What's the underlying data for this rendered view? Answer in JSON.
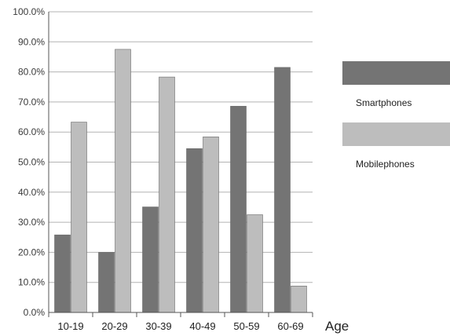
{
  "chart_data": {
    "type": "bar",
    "categories": [
      "10-19",
      "20-29",
      "30-39",
      "40-49",
      "50-59",
      "60-69"
    ],
    "series": [
      {
        "name": "Smartphones",
        "values": [
          25.8,
          20.0,
          35.1,
          54.5,
          68.6,
          81.5
        ],
        "color": "#747474"
      },
      {
        "name": "Mobilephones",
        "values": [
          63.3,
          87.5,
          78.3,
          58.4,
          32.5,
          8.8
        ],
        "color": "#bdbdbd"
      }
    ],
    "title": "",
    "xlabel": "Age",
    "ylabel": "",
    "ylim": [
      0,
      100
    ],
    "yticks": [
      "0.0%",
      "10.0%",
      "20.0%",
      "30.0%",
      "40.0%",
      "50.0%",
      "60.0%",
      "70.0%",
      "80.0%",
      "90.0%",
      "100.0%"
    ],
    "grid": true,
    "legend_position": "right"
  }
}
